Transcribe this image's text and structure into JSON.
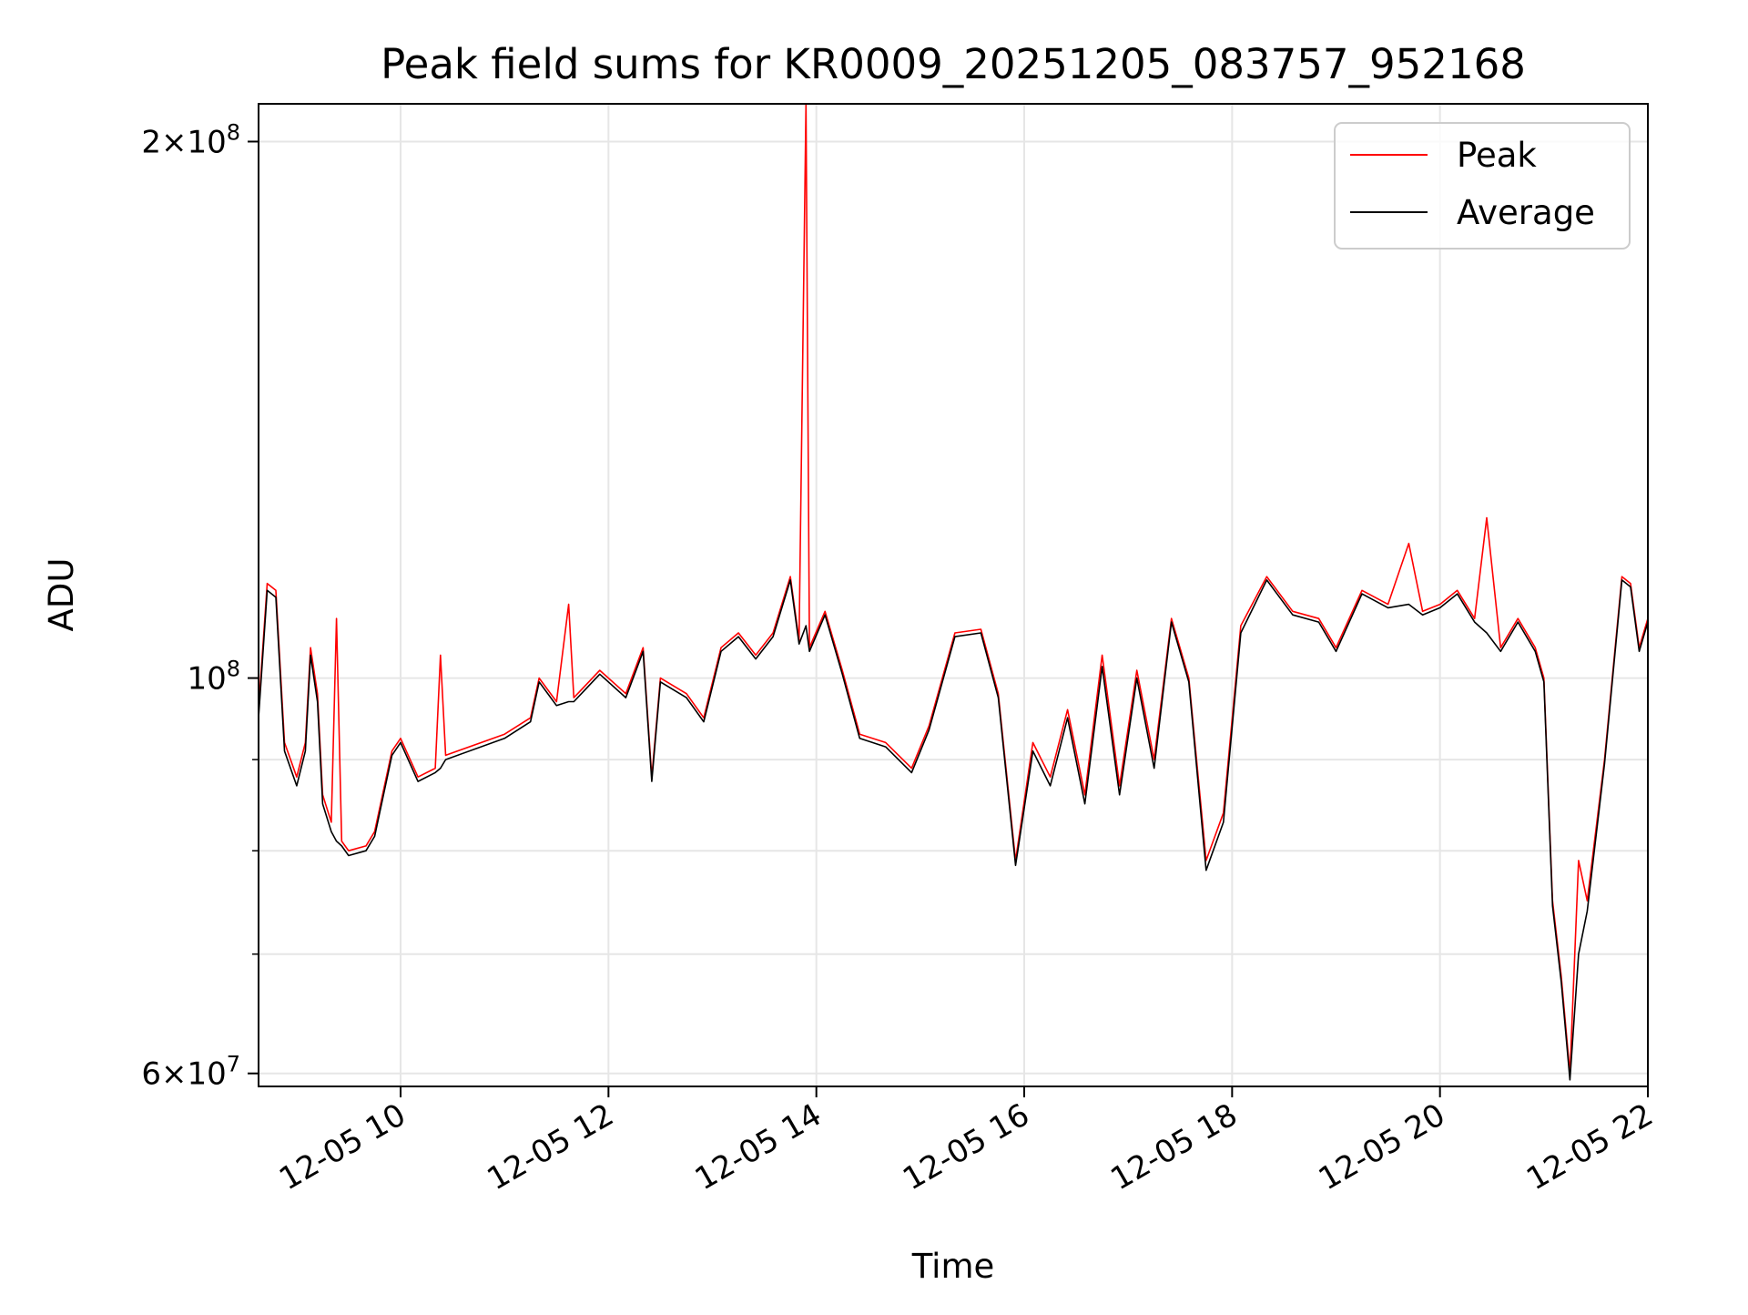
{
  "chart_data": {
    "type": "line",
    "title": "Peak field sums for KR0009_20251205_083757_952168",
    "xlabel": "Time",
    "ylabel": "ADU",
    "x_range": [
      "2025-12-05 08:38",
      "2025-12-05 22:00"
    ],
    "y_scale": "log",
    "ylim": [
      59000000,
      210000000
    ],
    "grid": true,
    "legend_position": "upper right",
    "colors": {
      "peak": "#ff0000",
      "average": "#000000",
      "grid": "#e6e6e6"
    },
    "x_ticks": [
      {
        "value": "2025-12-05 10:00",
        "label": "12-05 10"
      },
      {
        "value": "2025-12-05 12:00",
        "label": "12-05 12"
      },
      {
        "value": "2025-12-05 14:00",
        "label": "12-05 14"
      },
      {
        "value": "2025-12-05 16:00",
        "label": "12-05 16"
      },
      {
        "value": "2025-12-05 18:00",
        "label": "12-05 18"
      },
      {
        "value": "2025-12-05 20:00",
        "label": "12-05 20"
      },
      {
        "value": "2025-12-05 22:00",
        "label": "12-05 22"
      }
    ],
    "y_major_ticks": [
      {
        "value": 60000000,
        "mantissa": "6",
        "base": "10",
        "exponent": "7"
      },
      {
        "value": 100000000,
        "mantissa": "",
        "base": "10",
        "exponent": "8"
      },
      {
        "value": 200000000,
        "mantissa": "2",
        "base": "10",
        "exponent": "8"
      }
    ],
    "y_minor_gridlines": [
      70000000,
      80000000,
      90000000
    ],
    "series": [
      {
        "name": "Peak",
        "color": "#ff0000",
        "points": [
          [
            "2025-12-05 08:38",
            96000000
          ],
          [
            "2025-12-05 08:43",
            113000000
          ],
          [
            "2025-12-05 08:48",
            112000000
          ],
          [
            "2025-12-05 08:53",
            92000000
          ],
          [
            "2025-12-05 09:00",
            88000000
          ],
          [
            "2025-12-05 09:05",
            92000000
          ],
          [
            "2025-12-05 09:08",
            104000000
          ],
          [
            "2025-12-05 09:12",
            98000000
          ],
          [
            "2025-12-05 09:15",
            86000000
          ],
          [
            "2025-12-05 09:20",
            83000000
          ],
          [
            "2025-12-05 09:23",
            108000000
          ],
          [
            "2025-12-05 09:26",
            81000000
          ],
          [
            "2025-12-05 09:30",
            80000000
          ],
          [
            "2025-12-05 09:40",
            80500000
          ],
          [
            "2025-12-05 09:45",
            82000000
          ],
          [
            "2025-12-05 09:55",
            91000000
          ],
          [
            "2025-12-05 10:00",
            92500000
          ],
          [
            "2025-12-05 10:10",
            88000000
          ],
          [
            "2025-12-05 10:20",
            89000000
          ],
          [
            "2025-12-05 10:23",
            103000000
          ],
          [
            "2025-12-05 10:26",
            90500000
          ],
          [
            "2025-12-05 11:00",
            93000000
          ],
          [
            "2025-12-05 11:15",
            95000000
          ],
          [
            "2025-12-05 11:20",
            100000000
          ],
          [
            "2025-12-05 11:30",
            97000000
          ],
          [
            "2025-12-05 11:37",
            110000000
          ],
          [
            "2025-12-05 11:40",
            97500000
          ],
          [
            "2025-12-05 11:55",
            101000000
          ],
          [
            "2025-12-05 12:10",
            98000000
          ],
          [
            "2025-12-05 12:20",
            104000000
          ],
          [
            "2025-12-05 12:25",
            88000000
          ],
          [
            "2025-12-05 12:30",
            100000000
          ],
          [
            "2025-12-05 12:45",
            98000000
          ],
          [
            "2025-12-05 12:55",
            95000000
          ],
          [
            "2025-12-05 13:05",
            104000000
          ],
          [
            "2025-12-05 13:15",
            106000000
          ],
          [
            "2025-12-05 13:25",
            103000000
          ],
          [
            "2025-12-05 13:35",
            106000000
          ],
          [
            "2025-12-05 13:45",
            114000000
          ],
          [
            "2025-12-05 13:50",
            105000000
          ],
          [
            "2025-12-05 13:54",
            210000000
          ],
          [
            "2025-12-05 13:56",
            104000000
          ],
          [
            "2025-12-05 14:05",
            109000000
          ],
          [
            "2025-12-05 14:15",
            101000000
          ],
          [
            "2025-12-05 14:25",
            93000000
          ],
          [
            "2025-12-05 14:40",
            92000000
          ],
          [
            "2025-12-05 14:55",
            89000000
          ],
          [
            "2025-12-05 15:05",
            94000000
          ],
          [
            "2025-12-05 15:20",
            106000000
          ],
          [
            "2025-12-05 15:35",
            106500000
          ],
          [
            "2025-12-05 15:45",
            98000000
          ],
          [
            "2025-12-05 15:55",
            79000000
          ],
          [
            "2025-12-05 16:05",
            92000000
          ],
          [
            "2025-12-05 16:15",
            88000000
          ],
          [
            "2025-12-05 16:25",
            96000000
          ],
          [
            "2025-12-05 16:35",
            86000000
          ],
          [
            "2025-12-05 16:45",
            103000000
          ],
          [
            "2025-12-05 16:55",
            87000000
          ],
          [
            "2025-12-05 17:05",
            101000000
          ],
          [
            "2025-12-05 17:15",
            90000000
          ],
          [
            "2025-12-05 17:25",
            108000000
          ],
          [
            "2025-12-05 17:35",
            100000000
          ],
          [
            "2025-12-05 17:45",
            79000000
          ],
          [
            "2025-12-05 17:55",
            84000000
          ],
          [
            "2025-12-05 18:05",
            107000000
          ],
          [
            "2025-12-05 18:20",
            114000000
          ],
          [
            "2025-12-05 18:35",
            109000000
          ],
          [
            "2025-12-05 18:50",
            108000000
          ],
          [
            "2025-12-05 19:00",
            104000000
          ],
          [
            "2025-12-05 19:15",
            112000000
          ],
          [
            "2025-12-05 19:30",
            110000000
          ],
          [
            "2025-12-05 19:42",
            119000000
          ],
          [
            "2025-12-05 19:50",
            109000000
          ],
          [
            "2025-12-05 20:00",
            110000000
          ],
          [
            "2025-12-05 20:10",
            112000000
          ],
          [
            "2025-12-05 20:20",
            108000000
          ],
          [
            "2025-12-05 20:27",
            123000000
          ],
          [
            "2025-12-05 20:35",
            104000000
          ],
          [
            "2025-12-05 20:45",
            108000000
          ],
          [
            "2025-12-05 20:55",
            104000000
          ],
          [
            "2025-12-05 21:00",
            100000000
          ],
          [
            "2025-12-05 21:05",
            75000000
          ],
          [
            "2025-12-05 21:10",
            68000000
          ],
          [
            "2025-12-05 21:15",
            60000000
          ],
          [
            "2025-12-05 21:20",
            79000000
          ],
          [
            "2025-12-05 21:25",
            75000000
          ],
          [
            "2025-12-05 21:35",
            90000000
          ],
          [
            "2025-12-05 21:45",
            114000000
          ],
          [
            "2025-12-05 21:50",
            113000000
          ],
          [
            "2025-12-05 21:55",
            104000000
          ],
          [
            "2025-12-05 22:00",
            108000000
          ]
        ]
      },
      {
        "name": "Average",
        "color": "#000000",
        "points": [
          [
            "2025-12-05 08:38",
            95000000
          ],
          [
            "2025-12-05 08:43",
            112000000
          ],
          [
            "2025-12-05 08:48",
            111000000
          ],
          [
            "2025-12-05 08:53",
            91000000
          ],
          [
            "2025-12-05 09:00",
            87000000
          ],
          [
            "2025-12-05 09:05",
            91000000
          ],
          [
            "2025-12-05 09:08",
            103000000
          ],
          [
            "2025-12-05 09:12",
            97000000
          ],
          [
            "2025-12-05 09:15",
            85000000
          ],
          [
            "2025-12-05 09:20",
            82000000
          ],
          [
            "2025-12-05 09:23",
            81000000
          ],
          [
            "2025-12-05 09:26",
            80500000
          ],
          [
            "2025-12-05 09:30",
            79500000
          ],
          [
            "2025-12-05 09:40",
            80000000
          ],
          [
            "2025-12-05 09:45",
            81500000
          ],
          [
            "2025-12-05 09:55",
            90500000
          ],
          [
            "2025-12-05 10:00",
            92000000
          ],
          [
            "2025-12-05 10:10",
            87500000
          ],
          [
            "2025-12-05 10:20",
            88500000
          ],
          [
            "2025-12-05 10:23",
            89000000
          ],
          [
            "2025-12-05 10:26",
            90000000
          ],
          [
            "2025-12-05 11:00",
            92500000
          ],
          [
            "2025-12-05 11:15",
            94500000
          ],
          [
            "2025-12-05 11:20",
            99500000
          ],
          [
            "2025-12-05 11:30",
            96500000
          ],
          [
            "2025-12-05 11:37",
            97000000
          ],
          [
            "2025-12-05 11:40",
            97000000
          ],
          [
            "2025-12-05 11:55",
            100500000
          ],
          [
            "2025-12-05 12:10",
            97500000
          ],
          [
            "2025-12-05 12:20",
            103500000
          ],
          [
            "2025-12-05 12:25",
            87500000
          ],
          [
            "2025-12-05 12:30",
            99500000
          ],
          [
            "2025-12-05 12:45",
            97500000
          ],
          [
            "2025-12-05 12:55",
            94500000
          ],
          [
            "2025-12-05 13:05",
            103500000
          ],
          [
            "2025-12-05 13:15",
            105500000
          ],
          [
            "2025-12-05 13:25",
            102500000
          ],
          [
            "2025-12-05 13:35",
            105500000
          ],
          [
            "2025-12-05 13:45",
            113500000
          ],
          [
            "2025-12-05 13:50",
            104500000
          ],
          [
            "2025-12-05 13:54",
            107000000
          ],
          [
            "2025-12-05 13:56",
            103500000
          ],
          [
            "2025-12-05 14:05",
            108500000
          ],
          [
            "2025-12-05 14:15",
            100500000
          ],
          [
            "2025-12-05 14:25",
            92500000
          ],
          [
            "2025-12-05 14:40",
            91500000
          ],
          [
            "2025-12-05 14:55",
            88500000
          ],
          [
            "2025-12-05 15:05",
            93500000
          ],
          [
            "2025-12-05 15:20",
            105500000
          ],
          [
            "2025-12-05 15:35",
            106000000
          ],
          [
            "2025-12-05 15:45",
            97500000
          ],
          [
            "2025-12-05 15:55",
            78500000
          ],
          [
            "2025-12-05 16:05",
            91000000
          ],
          [
            "2025-12-05 16:15",
            87000000
          ],
          [
            "2025-12-05 16:25",
            95000000
          ],
          [
            "2025-12-05 16:35",
            85000000
          ],
          [
            "2025-12-05 16:45",
            101500000
          ],
          [
            "2025-12-05 16:55",
            86000000
          ],
          [
            "2025-12-05 17:05",
            100000000
          ],
          [
            "2025-12-05 17:15",
            89000000
          ],
          [
            "2025-12-05 17:25",
            107500000
          ],
          [
            "2025-12-05 17:35",
            99500000
          ],
          [
            "2025-12-05 17:45",
            78000000
          ],
          [
            "2025-12-05 17:55",
            83000000
          ],
          [
            "2025-12-05 18:05",
            106000000
          ],
          [
            "2025-12-05 18:20",
            113500000
          ],
          [
            "2025-12-05 18:35",
            108500000
          ],
          [
            "2025-12-05 18:50",
            107500000
          ],
          [
            "2025-12-05 19:00",
            103500000
          ],
          [
            "2025-12-05 19:15",
            111500000
          ],
          [
            "2025-12-05 19:30",
            109500000
          ],
          [
            "2025-12-05 19:42",
            110000000
          ],
          [
            "2025-12-05 19:50",
            108500000
          ],
          [
            "2025-12-05 20:00",
            109500000
          ],
          [
            "2025-12-05 20:10",
            111500000
          ],
          [
            "2025-12-05 20:20",
            107500000
          ],
          [
            "2025-12-05 20:27",
            106000000
          ],
          [
            "2025-12-05 20:35",
            103500000
          ],
          [
            "2025-12-05 20:45",
            107500000
          ],
          [
            "2025-12-05 20:55",
            103500000
          ],
          [
            "2025-12-05 21:00",
            99500000
          ],
          [
            "2025-12-05 21:05",
            74500000
          ],
          [
            "2025-12-05 21:10",
            67500000
          ],
          [
            "2025-12-05 21:15",
            59500000
          ],
          [
            "2025-12-05 21:20",
            70000000
          ],
          [
            "2025-12-05 21:25",
            74000000
          ],
          [
            "2025-12-05 21:35",
            89500000
          ],
          [
            "2025-12-05 21:45",
            113500000
          ],
          [
            "2025-12-05 21:50",
            112500000
          ],
          [
            "2025-12-05 21:55",
            103500000
          ],
          [
            "2025-12-05 22:00",
            107500000
          ]
        ]
      }
    ]
  }
}
